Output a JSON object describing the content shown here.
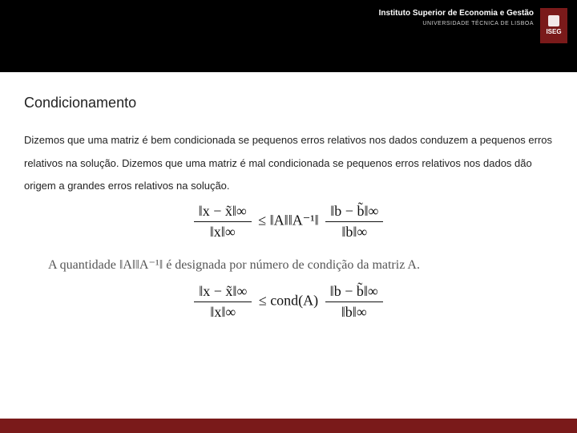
{
  "header": {
    "institution_line1": "Instituto Superior de Economia e Gestão",
    "institution_line2": "UNIVERSIDADE TÉCNICA DE LISBOA",
    "logo_text": "ISEG",
    "bg_color": "#000000",
    "logo_bg": "#7a1a1a"
  },
  "section": {
    "title": "Condicionamento",
    "paragraph": "Dizemos que uma matriz é bem condicionada se pequenos erros relativos nos dados conduzem a pequenos erros relativos na solução. Dizemos que uma matriz é mal condicionada se pequenos erros relativos nos dados dão origem a grandes erros relativos na solução."
  },
  "formula1": {
    "lhs_num": "‖x − x̃‖∞",
    "lhs_den": "‖x‖∞",
    "mid": " ≤ ‖A‖‖A⁻¹‖ ",
    "rhs_num": "‖b − b̃‖∞",
    "rhs_den": "‖b‖∞"
  },
  "quant": {
    "text_a": "A quantidade ",
    "expr": "‖A‖‖A⁻¹‖",
    "text_b": " é designada por número de condição da matriz A."
  },
  "formula2": {
    "lhs_num": "‖x − x̃‖∞",
    "lhs_den": "‖x‖∞",
    "mid": " ≤ cond(A) ",
    "rhs_num": "‖b − b̃‖∞",
    "rhs_den": "‖b‖∞"
  },
  "footer": {
    "bg_color": "#7a1a1a"
  }
}
